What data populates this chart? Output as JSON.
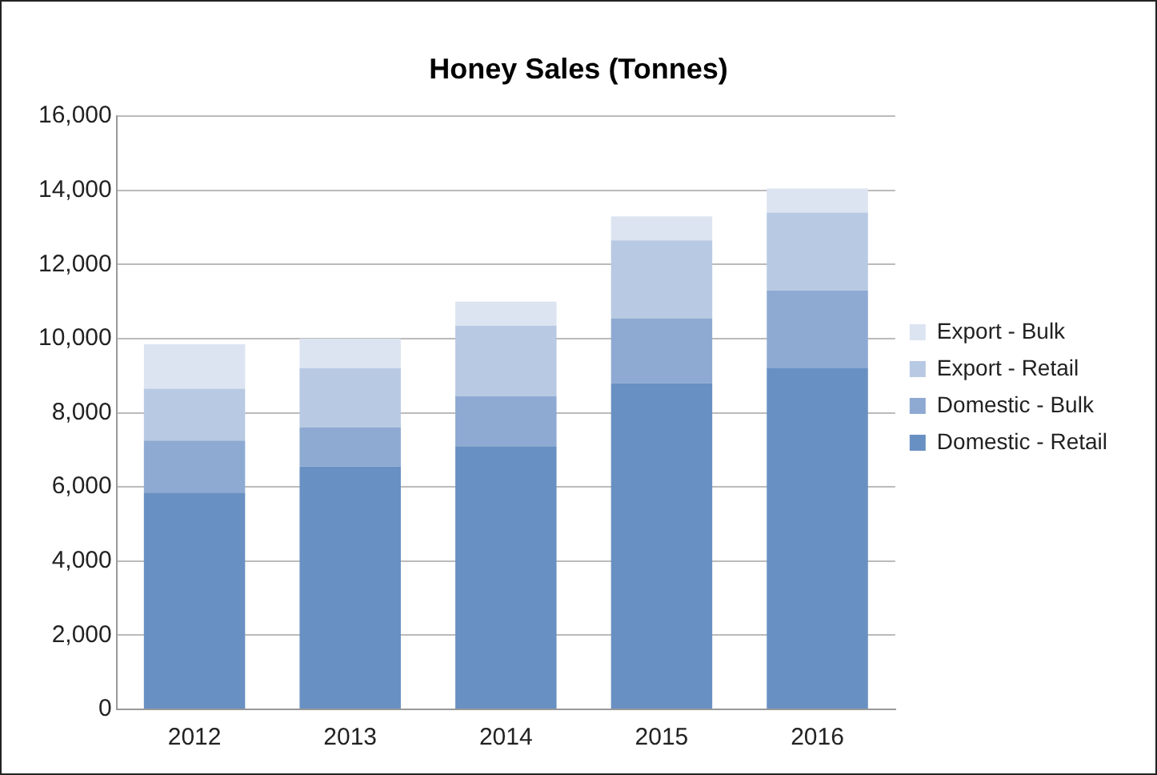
{
  "chart_data": {
    "type": "bar",
    "title": "Honey Sales (Tonnes)",
    "stacked": true,
    "categories": [
      "2012",
      "2013",
      "2014",
      "2015",
      "2016"
    ],
    "series": [
      {
        "name": "Domestic - Retail",
        "color": "#6990c2",
        "values": [
          5850,
          6550,
          7100,
          8800,
          9200
        ]
      },
      {
        "name": "Domestic - Bulk",
        "color": "#8eaad2",
        "values": [
          1400,
          1050,
          1350,
          1750,
          2100
        ]
      },
      {
        "name": "Export - Retail",
        "color": "#b8c9e3",
        "values": [
          1400,
          1600,
          1900,
          2100,
          2100
        ]
      },
      {
        "name": "Export - Bulk",
        "color": "#dce4f1",
        "values": [
          1200,
          800,
          650,
          650,
          650
        ]
      }
    ],
    "ylim": [
      0,
      16000
    ],
    "yticks": [
      0,
      {
        "value": 2000,
        "label": "2,000"
      },
      {
        "value": 4000,
        "label": "4,000"
      },
      {
        "value": 6000,
        "label": "6,000"
      },
      {
        "value": 8000,
        "label": "8,000"
      },
      {
        "value": 10000,
        "label": "10,000"
      },
      {
        "value": 12000,
        "label": "12,000"
      },
      {
        "value": 14000,
        "label": "14,000"
      },
      {
        "value": 16000,
        "label": "16,000"
      }
    ],
    "grid": "y",
    "legend": "right"
  }
}
